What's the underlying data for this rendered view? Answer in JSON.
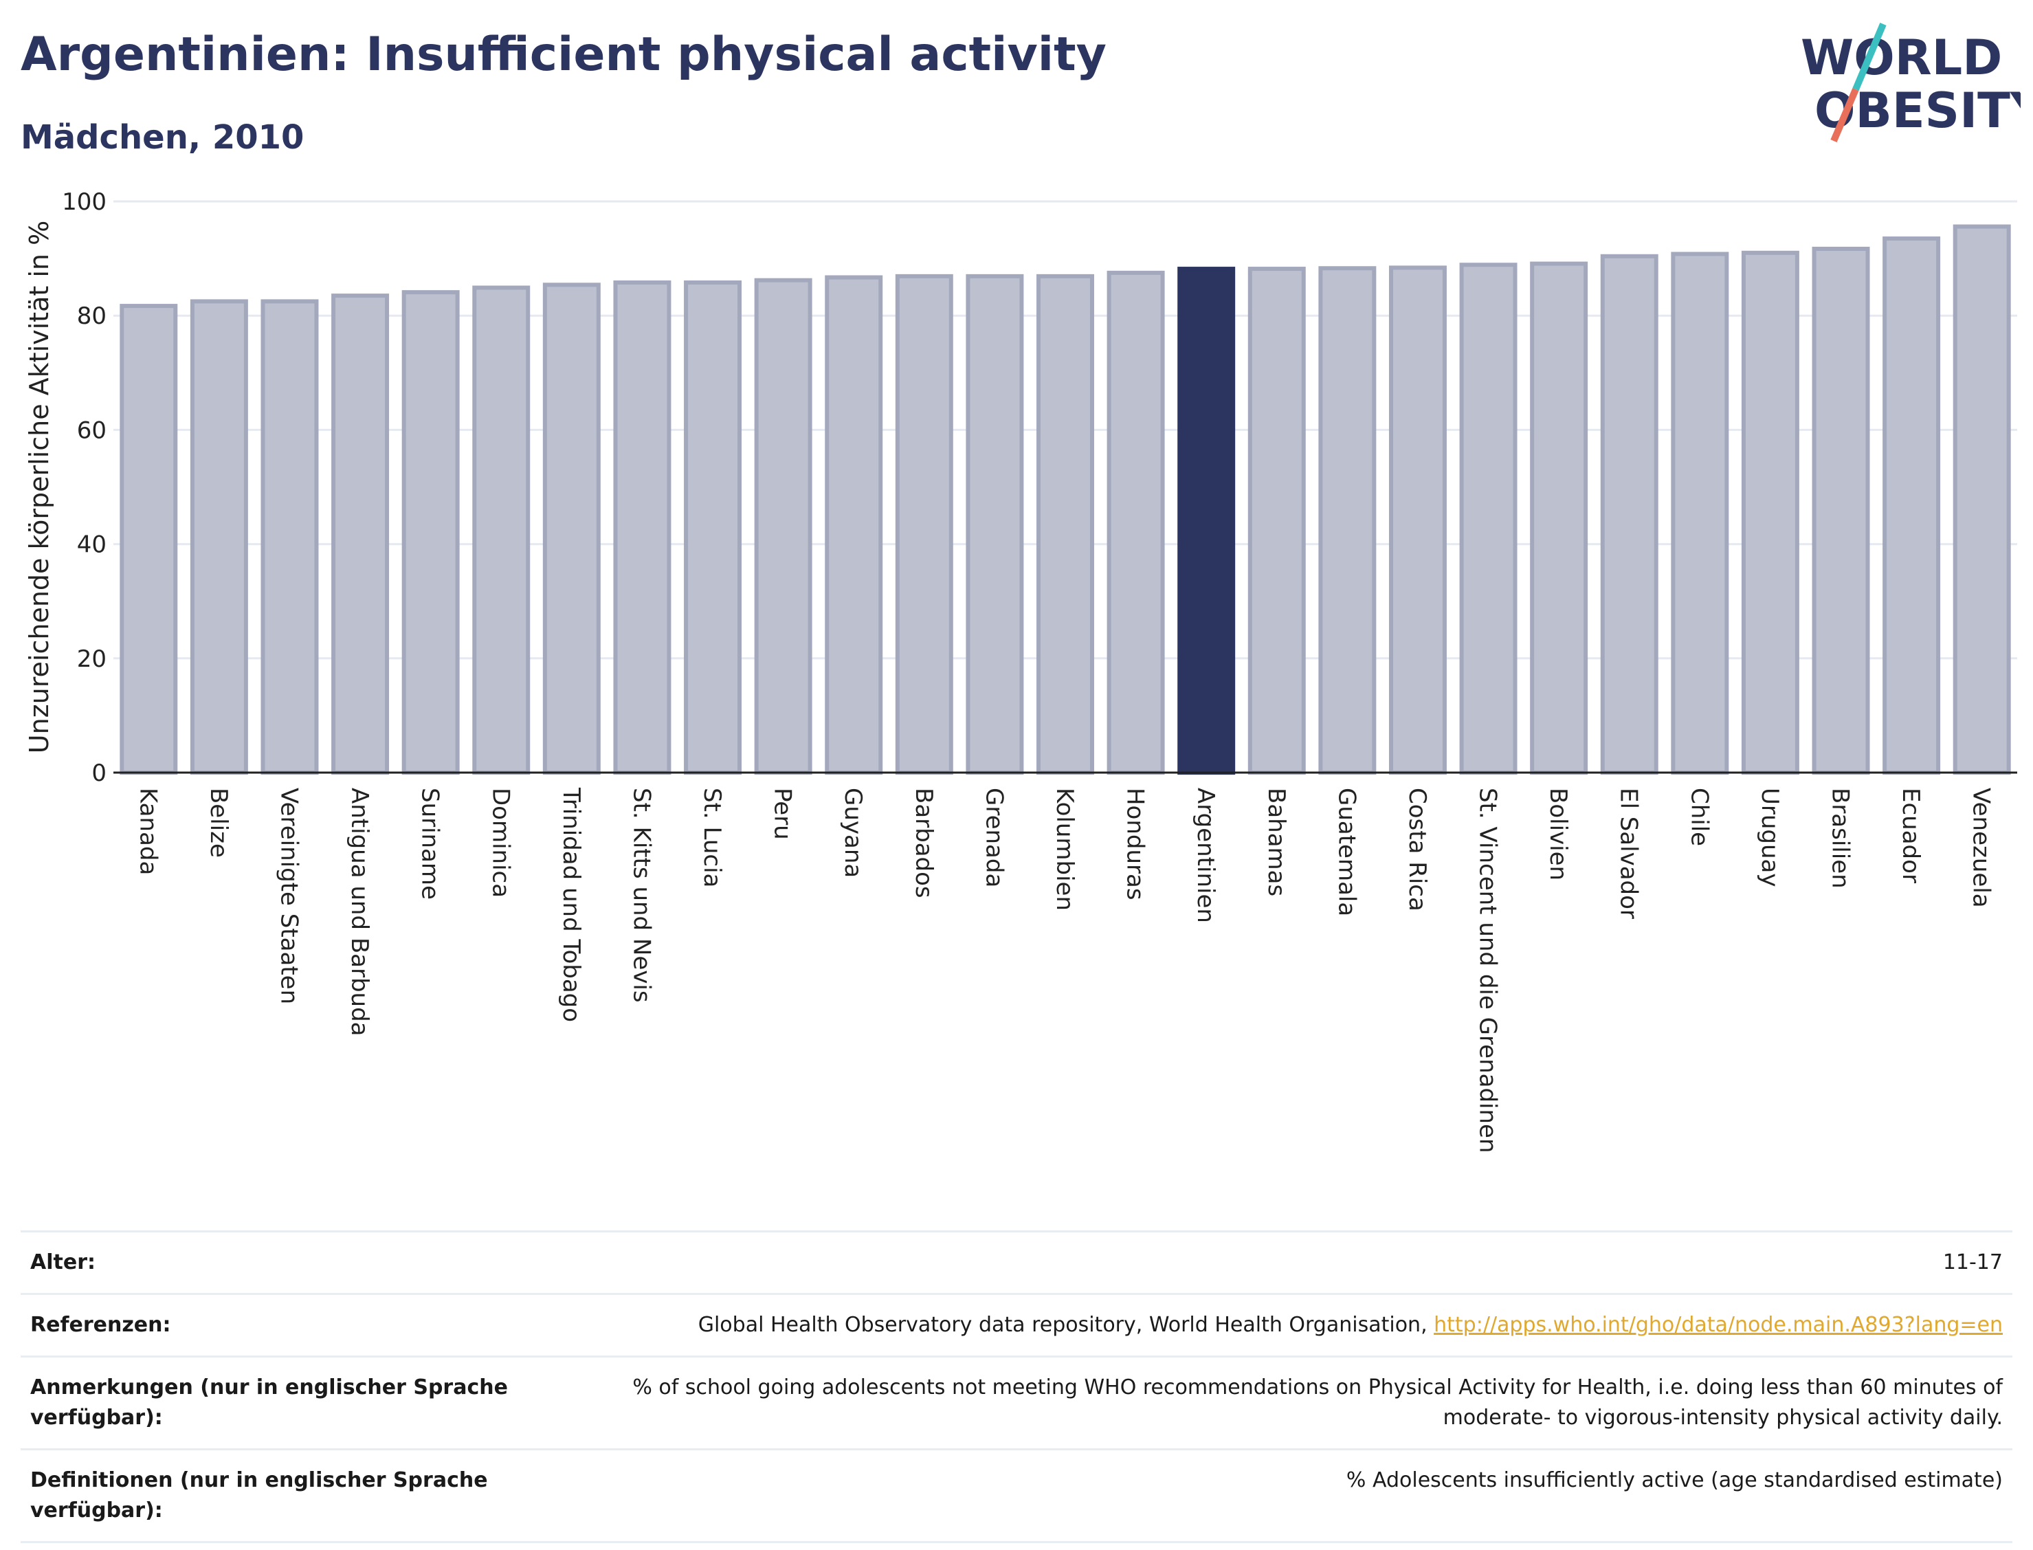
{
  "header": {
    "title": "Argentinien: Insufficient physical activity",
    "subtitle": "Mädchen, 2010"
  },
  "logo": {
    "line1": "WORLD",
    "line2": "OBESITY",
    "colors": {
      "text": "#2b3560",
      "slash_teal": "#3bbfc0",
      "slash_red": "#e8705a"
    }
  },
  "chart_data": {
    "type": "bar",
    "ylabel": "Unzureichende körperliche Aktivität in %",
    "xlabel": "",
    "ylim": [
      0,
      100
    ],
    "yticks": [
      0,
      20,
      40,
      60,
      80,
      100
    ],
    "grid": true,
    "highlight": "Argentinien",
    "colors": {
      "bar": "#bcc0cf",
      "bar_edge": "#a3a8bd",
      "highlight": "#2b3560"
    },
    "categories": [
      "Kanada",
      "Belize",
      "Vereinigte Staaten",
      "Antigua und Barbuda",
      "Suriname",
      "Dominica",
      "Trinidad und Tobago",
      "St. Kitts und Nevis",
      "St. Lucia",
      "Peru",
      "Guyana",
      "Barbados",
      "Grenada",
      "Kolumbien",
      "Honduras",
      "Argentinien",
      "Bahamas",
      "Guatemala",
      "Costa Rica",
      "St. Vincent und die Grenadinen",
      "Bolivien",
      "El Salvador",
      "Chile",
      "Uruguay",
      "Brasilien",
      "Ecuador",
      "Venezuela"
    ],
    "values": [
      81.7,
      82.5,
      82.5,
      83.5,
      84.1,
      84.9,
      85.4,
      85.8,
      85.8,
      86.2,
      86.7,
      86.9,
      86.9,
      86.9,
      87.5,
      88.2,
      88.2,
      88.3,
      88.4,
      88.9,
      89.1,
      90.4,
      90.8,
      91.0,
      91.7,
      93.5,
      95.6
    ]
  },
  "meta": {
    "rows": [
      {
        "key": "Alter:",
        "value": "11-17"
      },
      {
        "key": "Referenzen:",
        "value": "Global Health Observatory data repository, World Health Organisation, ",
        "link": "http://apps.who.int/gho/data/node.main.A893?lang=en"
      },
      {
        "key": "Anmerkungen (nur in englischer Sprache verfügbar):",
        "value": "% of school going adolescents not meeting WHO recommendations on Physical Activity for Health, i.e. doing less than 60 minutes of moderate- to vigorous-intensity physical activity daily."
      },
      {
        "key": "Definitionen (nur in englischer Sprache verfügbar):",
        "value": "% Adolescents insufficiently active (age standardised estimate)"
      }
    ]
  }
}
